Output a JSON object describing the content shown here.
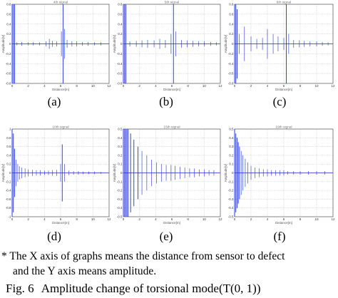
{
  "figure": {
    "note_line1": "* The X axis of graphs means the distance from sensor to defect",
    "note_line2": "and the Y axis means amplitude.",
    "caption_prefix": "Fig. 6",
    "caption_text": "Amplitude change of torsional mode(T(0, 1))"
  },
  "colors": {
    "signal": "#1f2fd8",
    "grid": "#9a9a9a",
    "axis": "#333333"
  },
  "chart_data": [
    {
      "type": "line",
      "panel_label": "(a)",
      "title": "4th signal",
      "xlabel": "Distance[m]",
      "ylabel": "Amplitude[V]",
      "xlim": [
        0,
        12
      ],
      "ylim": [
        -0.8,
        0.8
      ],
      "xticks": [
        "0",
        "2",
        "4",
        "6",
        "8",
        "10",
        "12"
      ],
      "yticks": [
        "0.8",
        "0.6",
        "0.4",
        "0.2",
        "0",
        "-0.2",
        "-0.4",
        "-0.6",
        "-0.8"
      ],
      "grid": true,
      "peaks": [
        {
          "x": 0.0,
          "y": 0.8
        },
        {
          "x": 0.15,
          "y": 0.8
        },
        {
          "x": 0.3,
          "y": 0.8
        },
        {
          "x": 0.6,
          "y": 0.03
        },
        {
          "x": 1.2,
          "y": 0.04
        },
        {
          "x": 2.0,
          "y": 0.03
        },
        {
          "x": 2.6,
          "y": 0.03
        },
        {
          "x": 3.4,
          "y": 0.03
        },
        {
          "x": 4.2,
          "y": 0.05
        },
        {
          "x": 4.6,
          "y": 0.1
        },
        {
          "x": 5.0,
          "y": 0.06
        },
        {
          "x": 5.5,
          "y": 0.05
        },
        {
          "x": 6.1,
          "y": 0.25
        },
        {
          "x": 6.3,
          "y": 0.8
        },
        {
          "x": 6.5,
          "y": 0.3
        },
        {
          "x": 6.8,
          "y": 0.08
        },
        {
          "x": 7.4,
          "y": 0.05
        },
        {
          "x": 8.0,
          "y": 0.05
        },
        {
          "x": 8.7,
          "y": 0.04
        },
        {
          "x": 9.4,
          "y": 0.04
        },
        {
          "x": 10.2,
          "y": 0.03
        },
        {
          "x": 11.0,
          "y": 0.03
        }
      ]
    },
    {
      "type": "line",
      "panel_label": "(b)",
      "title": "5th signal",
      "xlabel": "Distance[m]",
      "ylabel": "Amplitude[V]",
      "xlim": [
        0,
        12
      ],
      "ylim": [
        -0.8,
        0.8
      ],
      "xticks": [
        "0",
        "2",
        "4",
        "6",
        "8",
        "10",
        "12"
      ],
      "yticks": [
        "0.8",
        "0.6",
        "0.4",
        "0.2",
        "0",
        "-0.2",
        "-0.4",
        "-0.6",
        "-0.8"
      ],
      "grid": true,
      "peaks": [
        {
          "x": 0.0,
          "y": 0.8
        },
        {
          "x": 0.15,
          "y": 0.8
        },
        {
          "x": 0.3,
          "y": 0.8
        },
        {
          "x": 0.8,
          "y": 0.05
        },
        {
          "x": 1.6,
          "y": 0.06
        },
        {
          "x": 2.3,
          "y": 0.07
        },
        {
          "x": 3.0,
          "y": 0.08
        },
        {
          "x": 3.8,
          "y": 0.07
        },
        {
          "x": 4.5,
          "y": 0.1
        },
        {
          "x": 5.2,
          "y": 0.08
        },
        {
          "x": 5.9,
          "y": 0.2
        },
        {
          "x": 6.2,
          "y": 0.8
        },
        {
          "x": 6.5,
          "y": 0.25
        },
        {
          "x": 7.2,
          "y": 0.08
        },
        {
          "x": 7.9,
          "y": 0.07
        },
        {
          "x": 8.6,
          "y": 0.06
        },
        {
          "x": 9.3,
          "y": 0.05
        },
        {
          "x": 10.0,
          "y": 0.05
        },
        {
          "x": 10.8,
          "y": 0.04
        },
        {
          "x": 11.5,
          "y": 0.03
        }
      ]
    },
    {
      "type": "line",
      "panel_label": "(c)",
      "title": "6th signal",
      "xlabel": "Distance[m]",
      "ylabel": "Amplitude[V]",
      "xlim": [
        0,
        12
      ],
      "ylim": [
        -0.8,
        0.8
      ],
      "xticks": [
        "0",
        "2",
        "4",
        "6",
        "8",
        "10",
        "12"
      ],
      "yticks": [
        "0.8",
        "0.6",
        "0.4",
        "0.2",
        "0",
        "-0.2",
        "-0.4",
        "-0.6",
        "-0.8"
      ],
      "grid": true,
      "peaks": [
        {
          "x": 0.0,
          "y": 0.8
        },
        {
          "x": 0.15,
          "y": 0.8
        },
        {
          "x": 0.3,
          "y": 0.7
        },
        {
          "x": 0.55,
          "y": 0.2
        },
        {
          "x": 1.2,
          "y": 0.35
        },
        {
          "x": 2.0,
          "y": 0.15
        },
        {
          "x": 2.7,
          "y": 0.1
        },
        {
          "x": 3.4,
          "y": 0.12
        },
        {
          "x": 4.0,
          "y": 0.3
        },
        {
          "x": 4.7,
          "y": 0.2
        },
        {
          "x": 5.3,
          "y": 0.15
        },
        {
          "x": 6.0,
          "y": 0.12
        },
        {
          "x": 6.3,
          "y": 0.8
        },
        {
          "x": 6.6,
          "y": 0.2
        },
        {
          "x": 7.2,
          "y": 0.08
        },
        {
          "x": 7.9,
          "y": 0.07
        },
        {
          "x": 8.5,
          "y": 0.06
        },
        {
          "x": 9.2,
          "y": 0.05
        },
        {
          "x": 10.0,
          "y": 0.05
        },
        {
          "x": 10.7,
          "y": 0.04
        },
        {
          "x": 11.4,
          "y": 0.03
        }
      ]
    },
    {
      "type": "line",
      "panel_label": "(d)",
      "title": "10th signal",
      "xlabel": "Distance[m]",
      "ylabel": "Amplitude[V]",
      "xlim": [
        0,
        12
      ],
      "ylim": [
        -1,
        1
      ],
      "xticks": [
        "0",
        "2",
        "4",
        "6",
        "8",
        "10",
        "12"
      ],
      "yticks": [
        "1",
        "0.8",
        "0.6",
        "0.4",
        "0.2",
        "0",
        "-0.2",
        "-0.4",
        "-0.6",
        "-0.8",
        "-1"
      ],
      "grid": true,
      "peaks": [
        {
          "x": 0.0,
          "y": 1.0
        },
        {
          "x": 0.15,
          "y": 0.9
        },
        {
          "x": 0.3,
          "y": 0.55
        },
        {
          "x": 0.5,
          "y": 0.3
        },
        {
          "x": 0.7,
          "y": 0.2
        },
        {
          "x": 0.9,
          "y": 0.15
        },
        {
          "x": 1.2,
          "y": 0.12
        },
        {
          "x": 1.6,
          "y": 0.1
        },
        {
          "x": 2.0,
          "y": 0.08
        },
        {
          "x": 2.5,
          "y": 0.07
        },
        {
          "x": 3.0,
          "y": 0.06
        },
        {
          "x": 3.5,
          "y": 0.06
        },
        {
          "x": 4.0,
          "y": 0.05
        },
        {
          "x": 4.5,
          "y": 0.05
        },
        {
          "x": 5.0,
          "y": 0.06
        },
        {
          "x": 5.5,
          "y": 0.07
        },
        {
          "x": 6.0,
          "y": 0.2
        },
        {
          "x": 6.2,
          "y": 0.65
        },
        {
          "x": 6.5,
          "y": 0.2
        },
        {
          "x": 7.0,
          "y": 0.05
        },
        {
          "x": 7.6,
          "y": 0.04
        },
        {
          "x": 8.2,
          "y": 0.04
        },
        {
          "x": 8.8,
          "y": 0.03
        },
        {
          "x": 9.5,
          "y": 0.03
        },
        {
          "x": 10.2,
          "y": 0.03
        },
        {
          "x": 11.0,
          "y": 0.02
        }
      ]
    },
    {
      "type": "line",
      "panel_label": "(e)",
      "title": "15th signal",
      "xlabel": "Distance[m]",
      "ylabel": "Amplitude[V]",
      "xlim": [
        0,
        12
      ],
      "ylim": [
        -0.5,
        0.5
      ],
      "xticks": [
        "0",
        "2",
        "4",
        "6",
        "8",
        "10",
        "12"
      ],
      "yticks": [
        "0.5",
        "0.4",
        "0.3",
        "0.2",
        "0.1",
        "0",
        "-0.1",
        "-0.2",
        "-0.3",
        "-0.4",
        "-0.5"
      ],
      "grid": true,
      "peaks": [
        {
          "x": 0.0,
          "y": 0.5
        },
        {
          "x": 0.15,
          "y": 0.5
        },
        {
          "x": 0.3,
          "y": 0.5
        },
        {
          "x": 0.45,
          "y": 0.5
        },
        {
          "x": 0.6,
          "y": 0.5
        },
        {
          "x": 0.9,
          "y": 0.45
        },
        {
          "x": 1.3,
          "y": 0.38
        },
        {
          "x": 1.8,
          "y": 0.3
        },
        {
          "x": 2.3,
          "y": 0.25
        },
        {
          "x": 2.9,
          "y": 0.2
        },
        {
          "x": 3.5,
          "y": 0.15
        },
        {
          "x": 4.1,
          "y": 0.12
        },
        {
          "x": 4.7,
          "y": 0.1
        },
        {
          "x": 5.3,
          "y": 0.09
        },
        {
          "x": 5.9,
          "y": 0.09
        },
        {
          "x": 6.4,
          "y": 0.08
        },
        {
          "x": 7.0,
          "y": 0.07
        },
        {
          "x": 7.6,
          "y": 0.06
        },
        {
          "x": 8.2,
          "y": 0.05
        },
        {
          "x": 8.8,
          "y": 0.05
        },
        {
          "x": 9.4,
          "y": 0.04
        },
        {
          "x": 10.0,
          "y": 0.04
        },
        {
          "x": 10.6,
          "y": 0.03
        },
        {
          "x": 11.2,
          "y": 0.03
        }
      ]
    },
    {
      "type": "line",
      "panel_label": "(f)",
      "title": "19th signal",
      "xlabel": "Distance[m]",
      "ylabel": "Amplitude[V]",
      "xlim": [
        0,
        12
      ],
      "ylim": [
        -0.5,
        0.5
      ],
      "xticks": [
        "0",
        "2",
        "4",
        "6",
        "8",
        "10",
        "12"
      ],
      "yticks": [
        "0.5",
        "0.4",
        "0.3",
        "0.2",
        "0.1",
        "0",
        "-0.1",
        "-0.2",
        "-0.3",
        "-0.4",
        "-0.5"
      ],
      "grid": true,
      "peaks": [
        {
          "x": 0.0,
          "y": 0.5
        },
        {
          "x": 0.15,
          "y": 0.45
        },
        {
          "x": 0.3,
          "y": 0.4
        },
        {
          "x": 0.45,
          "y": 0.35
        },
        {
          "x": 0.6,
          "y": 0.3
        },
        {
          "x": 0.8,
          "y": 0.25
        },
        {
          "x": 1.0,
          "y": 0.2
        },
        {
          "x": 1.3,
          "y": 0.16
        },
        {
          "x": 1.6,
          "y": 0.12
        },
        {
          "x": 2.0,
          "y": 0.08
        },
        {
          "x": 2.5,
          "y": 0.06
        },
        {
          "x": 3.0,
          "y": 0.05
        },
        {
          "x": 3.5,
          "y": 0.04
        },
        {
          "x": 4.0,
          "y": 0.04
        },
        {
          "x": 4.5,
          "y": 0.03
        },
        {
          "x": 5.0,
          "y": 0.03
        },
        {
          "x": 5.5,
          "y": 0.03
        },
        {
          "x": 6.0,
          "y": 0.03
        },
        {
          "x": 6.5,
          "y": 0.02
        },
        {
          "x": 7.2,
          "y": 0.02
        },
        {
          "x": 8.0,
          "y": 0.02
        },
        {
          "x": 9.0,
          "y": 0.02
        },
        {
          "x": 10.0,
          "y": 0.02
        },
        {
          "x": 11.0,
          "y": 0.02
        }
      ]
    }
  ]
}
